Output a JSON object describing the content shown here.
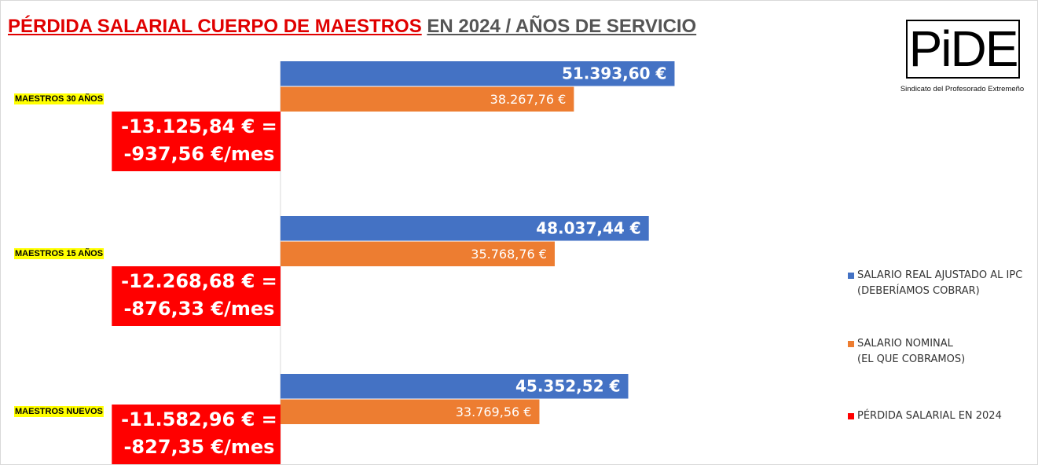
{
  "chart_data": {
    "type": "hbar",
    "title_parts": [
      "PÉRDIDA SALARIAL CUERPO DE MAESTROS",
      "EN 2024 / AÑOS DE SERVICIO"
    ],
    "logo": {
      "text": "PiDE",
      "caption": "Sindicato del Profesorado Extremeño"
    },
    "categories": [
      "MAESTROS 30 AÑOS",
      "MAESTROS 15 AÑOS",
      "MAESTROS NUEVOS"
    ],
    "xlim": [
      -21200,
      53600
    ],
    "legend": "right",
    "series": [
      {
        "name": "SALARIO REAL AJUSTADO AL IPC\n(DEBERÍAMOS COBRAR)",
        "color": "#4472c4",
        "values": [
          51393.6,
          48037.44,
          45352.52
        ],
        "value_labels": [
          "51.393,60 €",
          "48.037,44 €",
          "45.352,52 €"
        ]
      },
      {
        "name": "SALARIO NOMINAL\n(EL QUE COBRAMOS)",
        "color": "#ed7d31",
        "values": [
          38267.76,
          35768.76,
          33769.56
        ],
        "value_labels": [
          "38.267,76 €",
          "35.768,76 €",
          "33.769,56 €"
        ]
      },
      {
        "name": "PÉRDIDA SALARIAL EN 2024",
        "color": "#ff0000",
        "values": [
          -13125.84,
          -12268.68,
          -11582.96
        ],
        "value_labels": [
          "-13.125,84 € =\n-937,56 €/mes",
          "-12.268,68 € =\n-876,33 €/mes",
          "-11.582,96 € =\n-827,35 €/mes"
        ]
      }
    ]
  }
}
